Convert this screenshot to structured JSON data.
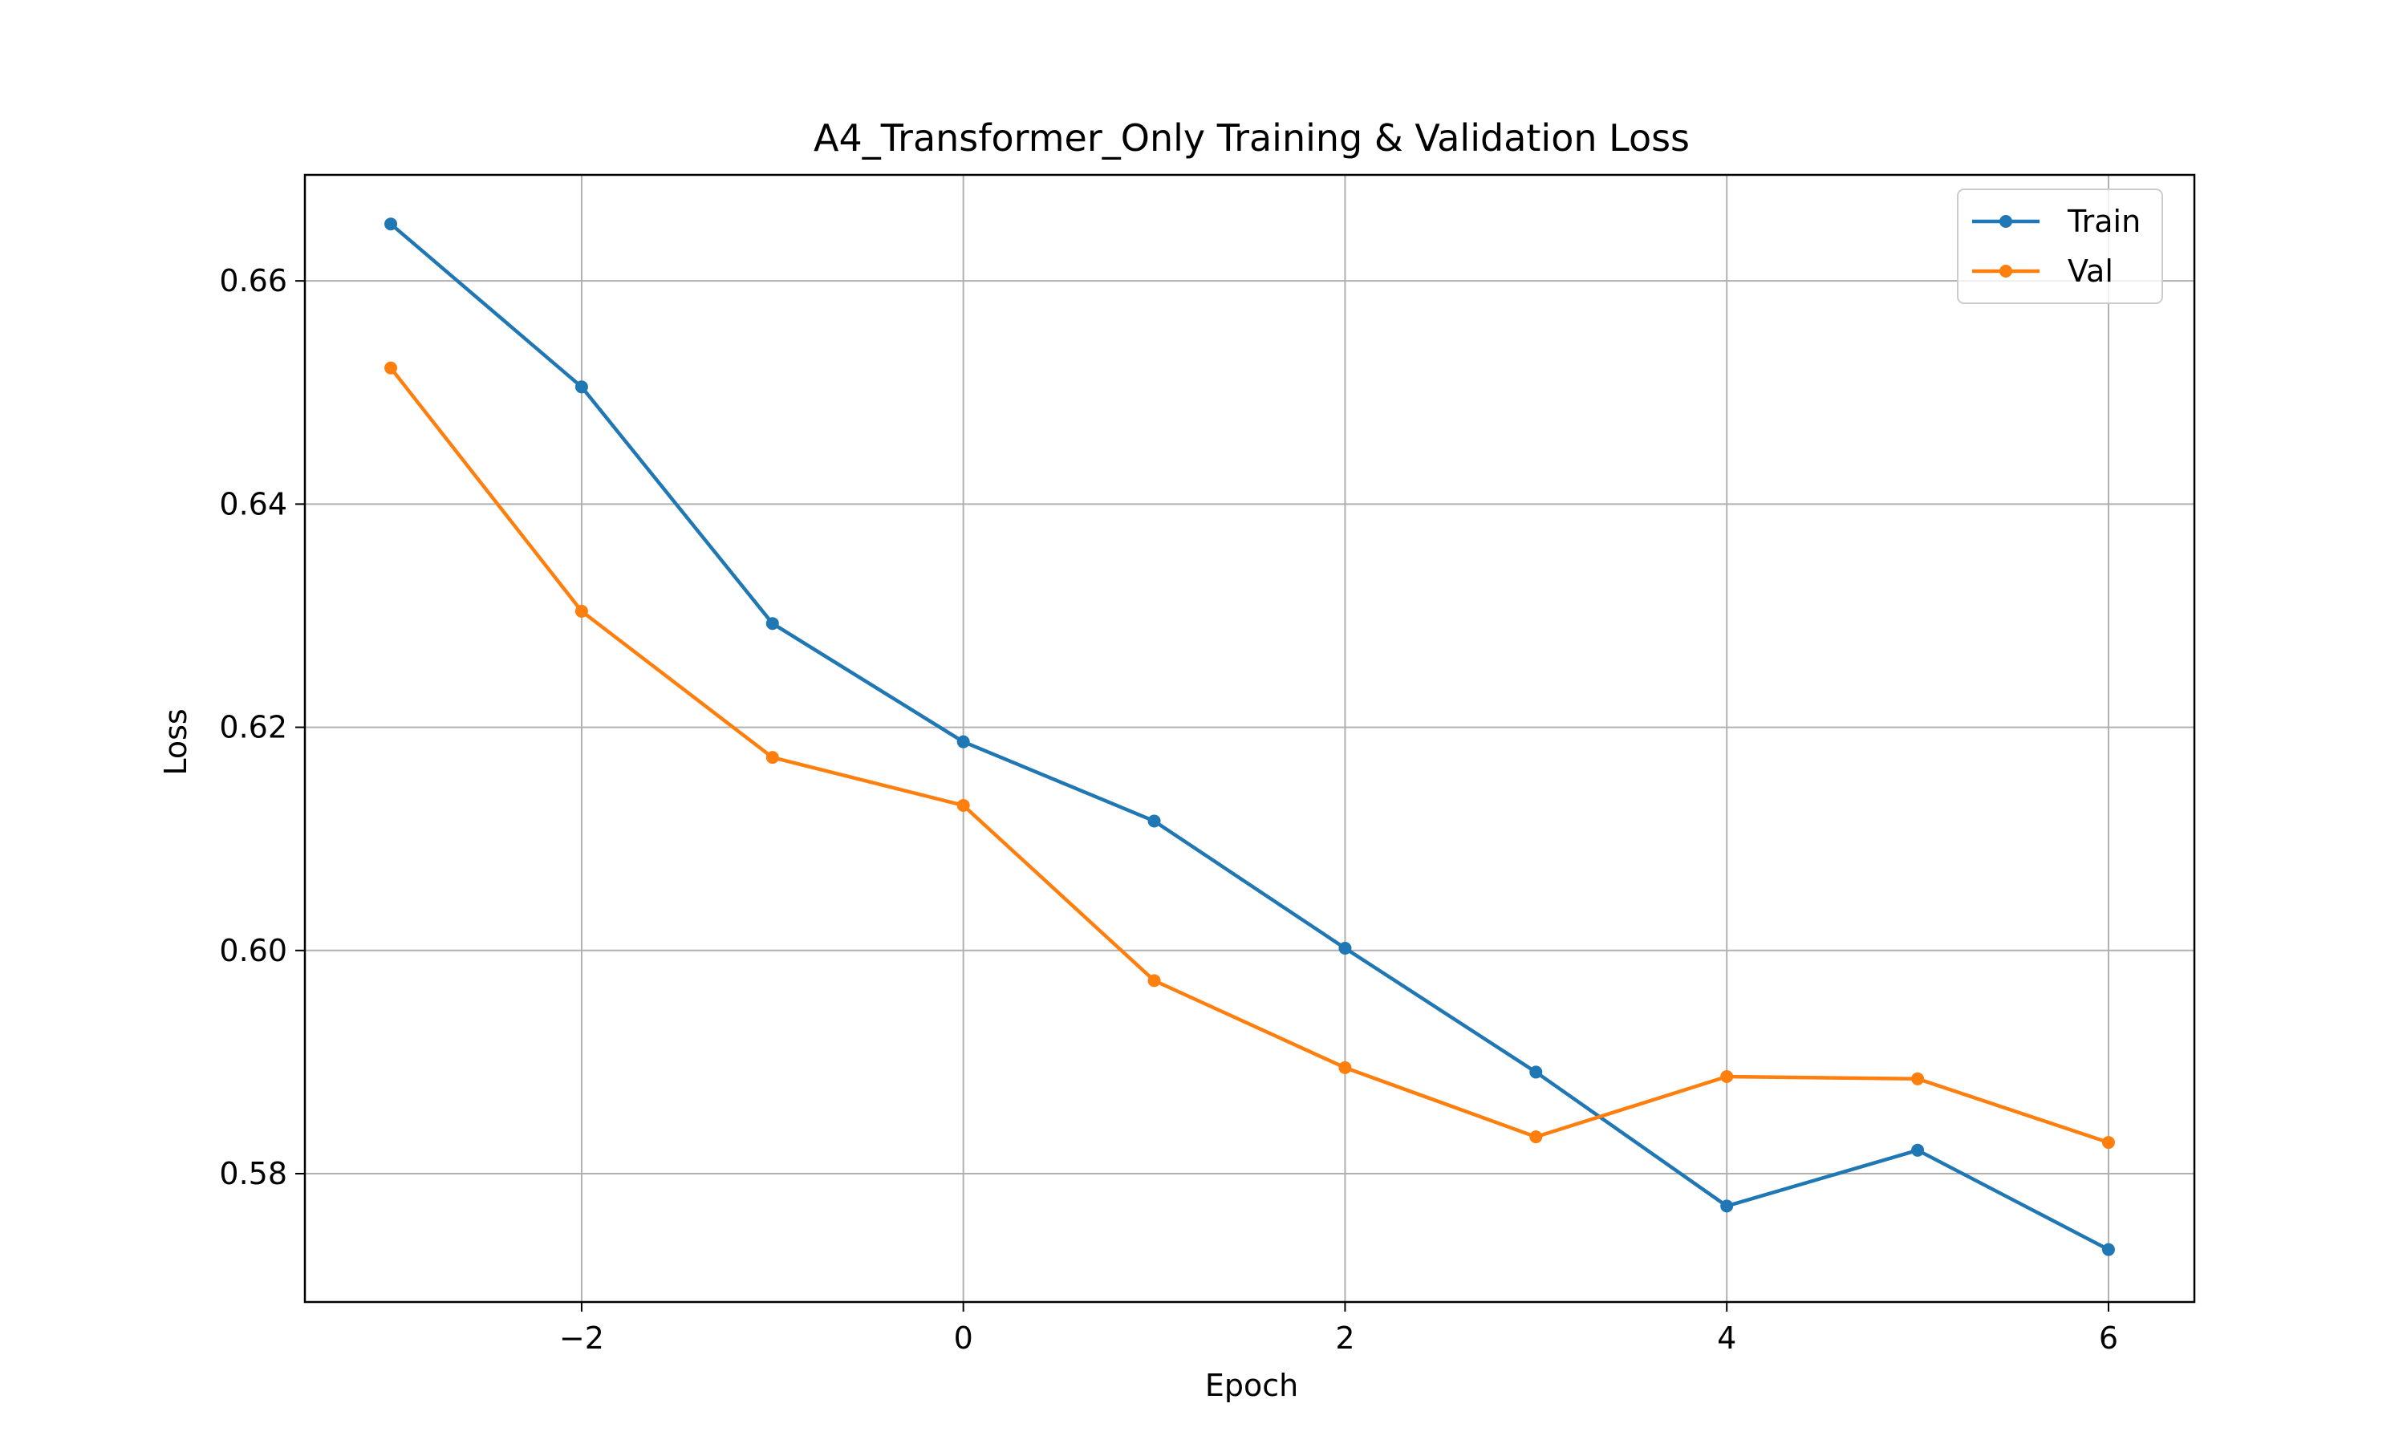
{
  "chart_data": {
    "type": "line",
    "title": "A4_Transformer_Only Training & Validation Loss",
    "xlabel": "Epoch",
    "ylabel": "Loss",
    "x": [
      -3,
      -2,
      -1,
      0,
      1,
      2,
      3,
      4,
      5,
      6
    ],
    "xlim": [
      -3.45,
      6.45
    ],
    "ylim": [
      0.5685,
      0.6695
    ],
    "xticks": [
      -2,
      0,
      2,
      4,
      6
    ],
    "xtick_labels": [
      "−2",
      "0",
      "2",
      "4",
      "6"
    ],
    "yticks": [
      0.58,
      0.6,
      0.62,
      0.64,
      0.66
    ],
    "ytick_labels": [
      "0.58",
      "0.60",
      "0.62",
      "0.64",
      "0.66"
    ],
    "grid": true,
    "legend_position": "upper right",
    "series": [
      {
        "name": "Train",
        "color": "#1f77b4",
        "values": [
          0.6651,
          0.6505,
          0.6293,
          0.6187,
          0.6116,
          0.6002,
          0.5891,
          0.5771,
          0.5821,
          0.5732
        ]
      },
      {
        "name": "Val",
        "color": "#ff7f0e",
        "values": [
          0.6522,
          0.6304,
          0.6173,
          0.613,
          0.5973,
          0.5895,
          0.5833,
          0.5887,
          0.5885,
          0.5828
        ]
      }
    ]
  }
}
